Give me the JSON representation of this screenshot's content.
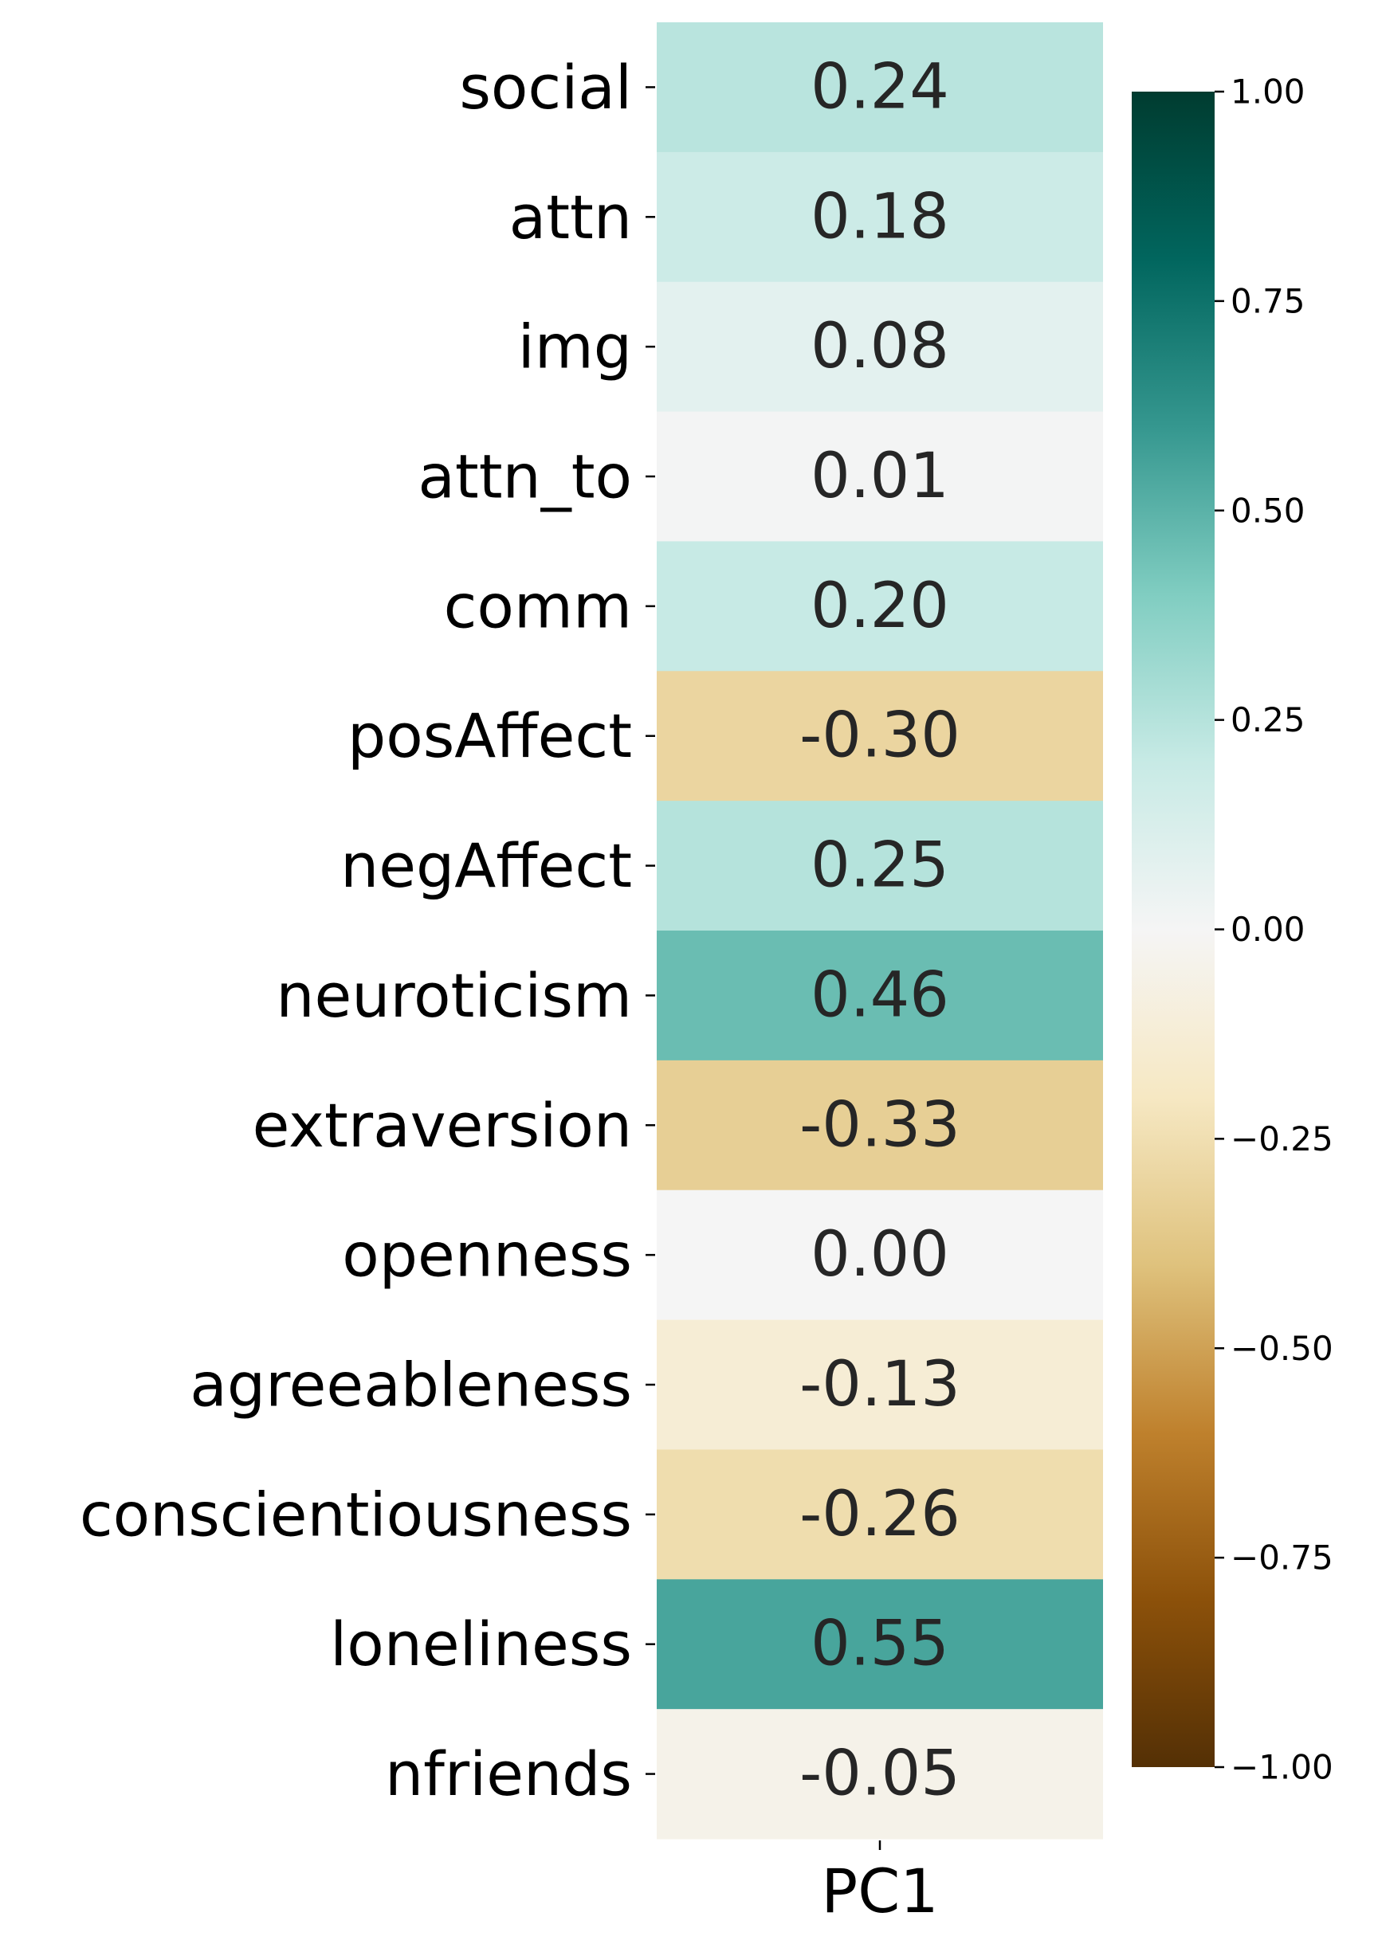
{
  "chart_data": {
    "type": "heatmap",
    "title": "",
    "xlabel": "",
    "ylabel": "",
    "columns": [
      "PC1"
    ],
    "rows": [
      "social",
      "attn",
      "img",
      "attn_to",
      "comm",
      "posAffect",
      "negAffect",
      "neuroticism",
      "extraversion",
      "openness",
      "agreeableness",
      "conscientiousness",
      "loneliness",
      "nfriends"
    ],
    "values": [
      0.24,
      0.18,
      0.08,
      0.01,
      0.2,
      -0.3,
      0.25,
      0.46,
      -0.33,
      0.0,
      -0.13,
      -0.26,
      0.55,
      -0.05
    ],
    "value_labels": [
      "0.24",
      "0.18",
      "0.08",
      "0.01",
      "0.20",
      "-0.30",
      "0.25",
      "0.46",
      "-0.33",
      "0.00",
      "-0.13",
      "-0.26",
      "0.55",
      "-0.05"
    ],
    "colormap": "BrBG",
    "vmin": -1.0,
    "vmax": 1.0,
    "colorbar": {
      "ticks": [
        1.0,
        0.75,
        0.5,
        0.25,
        0.0,
        -0.25,
        -0.5,
        -0.75,
        -1.0
      ],
      "tick_labels": [
        "1.00",
        "0.75",
        "0.50",
        "0.25",
        "0.00",
        "−0.25",
        "−0.50",
        "−0.75",
        "−1.00"
      ],
      "placement": "right"
    },
    "annotation_colors": {
      "dark": "#262626",
      "light": "#ffffff"
    }
  }
}
